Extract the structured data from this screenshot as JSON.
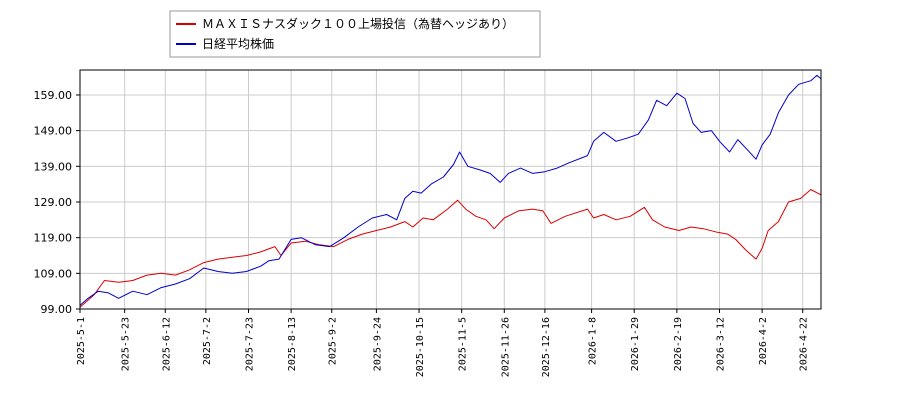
{
  "chart_data": {
    "type": "line",
    "grid": true,
    "legend_position": "top-left",
    "ylim": [
      99.0,
      166.0
    ],
    "y_ticks": [
      "99.00",
      "109.00",
      "119.00",
      "129.00",
      "139.00",
      "149.00",
      "159.00"
    ],
    "x_ticks": [
      "2025-5-1",
      "2025-5-23",
      "2025-6-12",
      "2025-7-2",
      "2025-7-23",
      "2025-8-13",
      "2025-9-2",
      "2025-9-24",
      "2025-10-15",
      "2025-11-5",
      "2025-11-26",
      "2025-12-16",
      "2026-1-8",
      "2026-1-29",
      "2026-2-19",
      "2026-3-12",
      "2026-4-2",
      "2026-4-22"
    ],
    "x_range": [
      "2025-5-1",
      "2026-5-1"
    ],
    "series": [
      {
        "name": "ＭＡＸＩＳナスダック１００上場投信（為替ヘッジあり）",
        "color": "#dd0000",
        "points": [
          [
            "2025-5-1",
            99.5
          ],
          [
            "2025-5-8",
            103.0
          ],
          [
            "2025-5-13",
            107.0
          ],
          [
            "2025-5-20",
            106.5
          ],
          [
            "2025-5-27",
            107.0
          ],
          [
            "2025-6-3",
            108.5
          ],
          [
            "2025-6-10",
            109.0
          ],
          [
            "2025-6-17",
            108.5
          ],
          [
            "2025-6-24",
            110.0
          ],
          [
            "2025-7-1",
            112.0
          ],
          [
            "2025-7-8",
            113.0
          ],
          [
            "2025-7-15",
            113.5
          ],
          [
            "2025-7-22",
            114.0
          ],
          [
            "2025-7-29",
            115.0
          ],
          [
            "2025-8-5",
            116.5
          ],
          [
            "2025-8-8",
            114.0
          ],
          [
            "2025-8-13",
            117.5
          ],
          [
            "2025-8-20",
            118.0
          ],
          [
            "2025-8-27",
            117.0
          ],
          [
            "2025-9-3",
            116.5
          ],
          [
            "2025-9-10",
            118.5
          ],
          [
            "2025-9-17",
            120.0
          ],
          [
            "2025-9-24",
            121.0
          ],
          [
            "2025-10-1",
            122.0
          ],
          [
            "2025-10-8",
            123.5
          ],
          [
            "2025-10-12",
            122.0
          ],
          [
            "2025-10-17",
            124.5
          ],
          [
            "2025-10-22",
            124.0
          ],
          [
            "2025-10-29",
            127.0
          ],
          [
            "2025-11-3",
            129.5
          ],
          [
            "2025-11-7",
            127.0
          ],
          [
            "2025-11-12",
            125.0
          ],
          [
            "2025-11-17",
            124.0
          ],
          [
            "2025-11-21",
            121.5
          ],
          [
            "2025-11-26",
            124.5
          ],
          [
            "2025-12-3",
            126.5
          ],
          [
            "2025-12-10",
            127.0
          ],
          [
            "2025-12-15",
            126.5
          ],
          [
            "2025-12-19",
            123.0
          ],
          [
            "2025-12-26",
            125.0
          ],
          [
            "2026-1-6",
            127.0
          ],
          [
            "2026-1-9",
            124.5
          ],
          [
            "2026-1-14",
            125.5
          ],
          [
            "2026-1-20",
            124.0
          ],
          [
            "2026-1-27",
            125.0
          ],
          [
            "2026-2-3",
            127.5
          ],
          [
            "2026-2-7",
            124.0
          ],
          [
            "2026-2-13",
            122.0
          ],
          [
            "2026-2-20",
            121.0
          ],
          [
            "2026-2-26",
            122.0
          ],
          [
            "2026-3-4",
            121.5
          ],
          [
            "2026-3-11",
            120.5
          ],
          [
            "2026-3-16",
            120.0
          ],
          [
            "2026-3-20",
            118.5
          ],
          [
            "2026-3-25",
            115.5
          ],
          [
            "2026-3-30",
            113.0
          ],
          [
            "2026-4-2",
            116.0
          ],
          [
            "2026-4-5",
            121.0
          ],
          [
            "2026-4-10",
            123.5
          ],
          [
            "2026-4-15",
            129.0
          ],
          [
            "2026-4-21",
            130.0
          ],
          [
            "2026-4-26",
            132.5
          ],
          [
            "2026-5-1",
            131.0
          ]
        ]
      },
      {
        "name": "日経平均株価",
        "color": "#0000cc",
        "points": [
          [
            "2025-5-1",
            100.0
          ],
          [
            "2025-5-5",
            102.0
          ],
          [
            "2025-5-10",
            104.0
          ],
          [
            "2025-5-15",
            103.5
          ],
          [
            "2025-5-20",
            102.0
          ],
          [
            "2025-5-27",
            104.0
          ],
          [
            "2025-6-3",
            103.0
          ],
          [
            "2025-6-10",
            105.0
          ],
          [
            "2025-6-17",
            106.0
          ],
          [
            "2025-6-24",
            107.5
          ],
          [
            "2025-7-1",
            110.5
          ],
          [
            "2025-7-8",
            109.5
          ],
          [
            "2025-7-15",
            109.0
          ],
          [
            "2025-7-22",
            109.5
          ],
          [
            "2025-7-29",
            111.0
          ],
          [
            "2025-8-2",
            112.5
          ],
          [
            "2025-8-7",
            113.0
          ],
          [
            "2025-8-13",
            118.5
          ],
          [
            "2025-8-18",
            119.0
          ],
          [
            "2025-8-25",
            117.0
          ],
          [
            "2025-9-1",
            116.5
          ],
          [
            "2025-9-8",
            119.0
          ],
          [
            "2025-9-15",
            122.0
          ],
          [
            "2025-9-22",
            124.5
          ],
          [
            "2025-9-29",
            125.5
          ],
          [
            "2025-10-4",
            124.0
          ],
          [
            "2025-10-8",
            130.0
          ],
          [
            "2025-10-12",
            132.0
          ],
          [
            "2025-10-16",
            131.5
          ],
          [
            "2025-10-21",
            134.0
          ],
          [
            "2025-10-27",
            136.0
          ],
          [
            "2025-11-1",
            139.5
          ],
          [
            "2025-11-4",
            143.0
          ],
          [
            "2025-11-8",
            139.0
          ],
          [
            "2025-11-14",
            138.0
          ],
          [
            "2025-11-19",
            137.0
          ],
          [
            "2025-11-24",
            134.5
          ],
          [
            "2025-11-28",
            137.0
          ],
          [
            "2025-12-4",
            138.5
          ],
          [
            "2025-12-10",
            137.0
          ],
          [
            "2025-12-16",
            137.5
          ],
          [
            "2025-12-22",
            138.5
          ],
          [
            "2025-12-28",
            140.0
          ],
          [
            "2026-1-6",
            142.0
          ],
          [
            "2026-1-9",
            146.0
          ],
          [
            "2026-1-14",
            148.5
          ],
          [
            "2026-1-20",
            146.0
          ],
          [
            "2026-1-26",
            147.0
          ],
          [
            "2026-1-31",
            148.0
          ],
          [
            "2026-2-5",
            152.0
          ],
          [
            "2026-2-9",
            157.5
          ],
          [
            "2026-2-14",
            156.0
          ],
          [
            "2026-2-19",
            159.5
          ],
          [
            "2026-2-23",
            158.0
          ],
          [
            "2026-2-27",
            151.0
          ],
          [
            "2026-3-3",
            148.5
          ],
          [
            "2026-3-8",
            149.0
          ],
          [
            "2026-3-12",
            146.0
          ],
          [
            "2026-3-17",
            143.0
          ],
          [
            "2026-3-21",
            146.5
          ],
          [
            "2026-3-26",
            143.5
          ],
          [
            "2026-3-30",
            141.0
          ],
          [
            "2026-4-2",
            145.0
          ],
          [
            "2026-4-6",
            148.0
          ],
          [
            "2026-4-10",
            154.0
          ],
          [
            "2026-4-15",
            159.0
          ],
          [
            "2026-4-20",
            162.0
          ],
          [
            "2026-4-26",
            163.0
          ],
          [
            "2026-4-29",
            164.5
          ],
          [
            "2026-5-1",
            163.5
          ]
        ]
      }
    ]
  }
}
